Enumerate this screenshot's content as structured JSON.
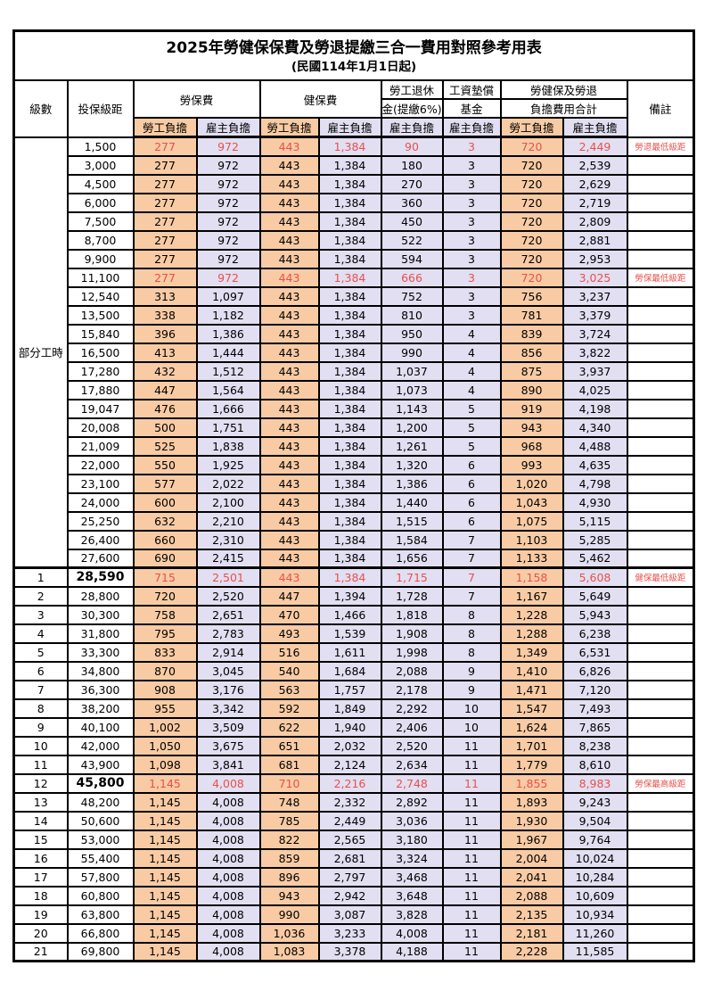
{
  "title": "2025年勞健保保費及勞退提繳三合一費用對照參考用表",
  "subtitle": "(民國114年1月1日起)",
  "header": {
    "level": "級數",
    "salary_bracket": "投保級距",
    "labor_insurance": "勞保費",
    "health_insurance": "健保費",
    "pension_line1": "勞工退休",
    "pension_line2": "金(提繳6%)",
    "wage_fund_line1": "工資墊償",
    "wage_fund_line2": "基金",
    "total_line1": "勞健保及勞退",
    "total_line2": "負擔費用合計",
    "remarks": "備註",
    "employee_share": "勞工負擔",
    "employer_share": "雇主負擔"
  },
  "part_time_label": "部分工時",
  "part_time_row_span": 23,
  "colors": {
    "employee_bg": "#F8CBA4",
    "employer_bg": "#E1DFF1",
    "highlight_text": "#E9504E",
    "border": "#000000"
  },
  "rows": [
    {
      "level": "",
      "salary": "1,500",
      "values": [
        "277",
        "972",
        "443",
        "1,384",
        "90",
        "3",
        "720",
        "2,449"
      ],
      "note": "勞退最低級距",
      "highlight": true,
      "salary_bold": false
    },
    {
      "level": "",
      "salary": "3,000",
      "values": [
        "277",
        "972",
        "443",
        "1,384",
        "180",
        "3",
        "720",
        "2,539"
      ],
      "note": "",
      "highlight": false,
      "salary_bold": false
    },
    {
      "level": "",
      "salary": "4,500",
      "values": [
        "277",
        "972",
        "443",
        "1,384",
        "270",
        "3",
        "720",
        "2,629"
      ],
      "note": "",
      "highlight": false,
      "salary_bold": false
    },
    {
      "level": "",
      "salary": "6,000",
      "values": [
        "277",
        "972",
        "443",
        "1,384",
        "360",
        "3",
        "720",
        "2,719"
      ],
      "note": "",
      "highlight": false,
      "salary_bold": false
    },
    {
      "level": "",
      "salary": "7,500",
      "values": [
        "277",
        "972",
        "443",
        "1,384",
        "450",
        "3",
        "720",
        "2,809"
      ],
      "note": "",
      "highlight": false,
      "salary_bold": false
    },
    {
      "level": "",
      "salary": "8,700",
      "values": [
        "277",
        "972",
        "443",
        "1,384",
        "522",
        "3",
        "720",
        "2,881"
      ],
      "note": "",
      "highlight": false,
      "salary_bold": false
    },
    {
      "level": "",
      "salary": "9,900",
      "values": [
        "277",
        "972",
        "443",
        "1,384",
        "594",
        "3",
        "720",
        "2,953"
      ],
      "note": "",
      "highlight": false,
      "salary_bold": false
    },
    {
      "level": "",
      "salary": "11,100",
      "values": [
        "277",
        "972",
        "443",
        "1,384",
        "666",
        "3",
        "720",
        "3,025"
      ],
      "note": "勞保最低級距",
      "highlight": true,
      "salary_bold": false
    },
    {
      "level": "",
      "salary": "12,540",
      "values": [
        "313",
        "1,097",
        "443",
        "1,384",
        "752",
        "3",
        "756",
        "3,237"
      ],
      "note": "",
      "highlight": false,
      "salary_bold": false
    },
    {
      "level": "",
      "salary": "13,500",
      "values": [
        "338",
        "1,182",
        "443",
        "1,384",
        "810",
        "3",
        "781",
        "3,379"
      ],
      "note": "",
      "highlight": false,
      "salary_bold": false
    },
    {
      "level": "",
      "salary": "15,840",
      "values": [
        "396",
        "1,386",
        "443",
        "1,384",
        "950",
        "4",
        "839",
        "3,724"
      ],
      "note": "",
      "highlight": false,
      "salary_bold": false
    },
    {
      "level": "",
      "salary": "16,500",
      "values": [
        "413",
        "1,444",
        "443",
        "1,384",
        "990",
        "4",
        "856",
        "3,822"
      ],
      "note": "",
      "highlight": false,
      "salary_bold": false
    },
    {
      "level": "",
      "salary": "17,280",
      "values": [
        "432",
        "1,512",
        "443",
        "1,384",
        "1,037",
        "4",
        "875",
        "3,937"
      ],
      "note": "",
      "highlight": false,
      "salary_bold": false
    },
    {
      "level": "",
      "salary": "17,880",
      "values": [
        "447",
        "1,564",
        "443",
        "1,384",
        "1,073",
        "4",
        "890",
        "4,025"
      ],
      "note": "",
      "highlight": false,
      "salary_bold": false
    },
    {
      "level": "",
      "salary": "19,047",
      "values": [
        "476",
        "1,666",
        "443",
        "1,384",
        "1,143",
        "5",
        "919",
        "4,198"
      ],
      "note": "",
      "highlight": false,
      "salary_bold": false
    },
    {
      "level": "",
      "salary": "20,008",
      "values": [
        "500",
        "1,751",
        "443",
        "1,384",
        "1,200",
        "5",
        "943",
        "4,340"
      ],
      "note": "",
      "highlight": false,
      "salary_bold": false
    },
    {
      "level": "",
      "salary": "21,009",
      "values": [
        "525",
        "1,838",
        "443",
        "1,384",
        "1,261",
        "5",
        "968",
        "4,488"
      ],
      "note": "",
      "highlight": false,
      "salary_bold": false
    },
    {
      "level": "",
      "salary": "22,000",
      "values": [
        "550",
        "1,925",
        "443",
        "1,384",
        "1,320",
        "6",
        "993",
        "4,635"
      ],
      "note": "",
      "highlight": false,
      "salary_bold": false
    },
    {
      "level": "",
      "salary": "23,100",
      "values": [
        "577",
        "2,022",
        "443",
        "1,384",
        "1,386",
        "6",
        "1,020",
        "4,798"
      ],
      "note": "",
      "highlight": false,
      "salary_bold": false
    },
    {
      "level": "",
      "salary": "24,000",
      "values": [
        "600",
        "2,100",
        "443",
        "1,384",
        "1,440",
        "6",
        "1,043",
        "4,930"
      ],
      "note": "",
      "highlight": false,
      "salary_bold": false
    },
    {
      "level": "",
      "salary": "25,250",
      "values": [
        "632",
        "2,210",
        "443",
        "1,384",
        "1,515",
        "6",
        "1,075",
        "5,115"
      ],
      "note": "",
      "highlight": false,
      "salary_bold": false
    },
    {
      "level": "",
      "salary": "26,400",
      "values": [
        "660",
        "2,310",
        "443",
        "1,384",
        "1,584",
        "7",
        "1,103",
        "5,285"
      ],
      "note": "",
      "highlight": false,
      "salary_bold": false
    },
    {
      "level": "",
      "salary": "27,600",
      "values": [
        "690",
        "2,415",
        "443",
        "1,384",
        "1,656",
        "7",
        "1,133",
        "5,462"
      ],
      "note": "",
      "highlight": false,
      "salary_bold": false
    },
    {
      "level": "1",
      "salary": "28,590",
      "values": [
        "715",
        "2,501",
        "443",
        "1,384",
        "1,715",
        "7",
        "1,158",
        "5,608"
      ],
      "note": "健保最低級距",
      "highlight": true,
      "salary_bold": true
    },
    {
      "level": "2",
      "salary": "28,800",
      "values": [
        "720",
        "2,520",
        "447",
        "1,394",
        "1,728",
        "7",
        "1,167",
        "5,649"
      ],
      "note": "",
      "highlight": false,
      "salary_bold": false
    },
    {
      "level": "3",
      "salary": "30,300",
      "values": [
        "758",
        "2,651",
        "470",
        "1,466",
        "1,818",
        "8",
        "1,228",
        "5,943"
      ],
      "note": "",
      "highlight": false,
      "salary_bold": false
    },
    {
      "level": "4",
      "salary": "31,800",
      "values": [
        "795",
        "2,783",
        "493",
        "1,539",
        "1,908",
        "8",
        "1,288",
        "6,238"
      ],
      "note": "",
      "highlight": false,
      "salary_bold": false
    },
    {
      "level": "5",
      "salary": "33,300",
      "values": [
        "833",
        "2,914",
        "516",
        "1,611",
        "1,998",
        "8",
        "1,349",
        "6,531"
      ],
      "note": "",
      "highlight": false,
      "salary_bold": false
    },
    {
      "level": "6",
      "salary": "34,800",
      "values": [
        "870",
        "3,045",
        "540",
        "1,684",
        "2,088",
        "9",
        "1,410",
        "6,826"
      ],
      "note": "",
      "highlight": false,
      "salary_bold": false
    },
    {
      "level": "7",
      "salary": "36,300",
      "values": [
        "908",
        "3,176",
        "563",
        "1,757",
        "2,178",
        "9",
        "1,471",
        "7,120"
      ],
      "note": "",
      "highlight": false,
      "salary_bold": false
    },
    {
      "level": "8",
      "salary": "38,200",
      "values": [
        "955",
        "3,342",
        "592",
        "1,849",
        "2,292",
        "10",
        "1,547",
        "7,493"
      ],
      "note": "",
      "highlight": false,
      "salary_bold": false
    },
    {
      "level": "9",
      "salary": "40,100",
      "values": [
        "1,002",
        "3,509",
        "622",
        "1,940",
        "2,406",
        "10",
        "1,624",
        "7,865"
      ],
      "note": "",
      "highlight": false,
      "salary_bold": false
    },
    {
      "level": "10",
      "salary": "42,000",
      "values": [
        "1,050",
        "3,675",
        "651",
        "2,032",
        "2,520",
        "11",
        "1,701",
        "8,238"
      ],
      "note": "",
      "highlight": false,
      "salary_bold": false
    },
    {
      "level": "11",
      "salary": "43,900",
      "values": [
        "1,098",
        "3,841",
        "681",
        "2,124",
        "2,634",
        "11",
        "1,779",
        "8,610"
      ],
      "note": "",
      "highlight": false,
      "salary_bold": false
    },
    {
      "level": "12",
      "salary": "45,800",
      "values": [
        "1,145",
        "4,008",
        "710",
        "2,216",
        "2,748",
        "11",
        "1,855",
        "8,983"
      ],
      "note": "勞保最高級距",
      "highlight": true,
      "salary_bold": true
    },
    {
      "level": "13",
      "salary": "48,200",
      "values": [
        "1,145",
        "4,008",
        "748",
        "2,332",
        "2,892",
        "11",
        "1,893",
        "9,243"
      ],
      "note": "",
      "highlight": false,
      "salary_bold": false
    },
    {
      "level": "14",
      "salary": "50,600",
      "values": [
        "1,145",
        "4,008",
        "785",
        "2,449",
        "3,036",
        "11",
        "1,930",
        "9,504"
      ],
      "note": "",
      "highlight": false,
      "salary_bold": false
    },
    {
      "level": "15",
      "salary": "53,000",
      "values": [
        "1,145",
        "4,008",
        "822",
        "2,565",
        "3,180",
        "11",
        "1,967",
        "9,764"
      ],
      "note": "",
      "highlight": false,
      "salary_bold": false
    },
    {
      "level": "16",
      "salary": "55,400",
      "values": [
        "1,145",
        "4,008",
        "859",
        "2,681",
        "3,324",
        "11",
        "2,004",
        "10,024"
      ],
      "note": "",
      "highlight": false,
      "salary_bold": false
    },
    {
      "level": "17",
      "salary": "57,800",
      "values": [
        "1,145",
        "4,008",
        "896",
        "2,797",
        "3,468",
        "11",
        "2,041",
        "10,284"
      ],
      "note": "",
      "highlight": false,
      "salary_bold": false
    },
    {
      "level": "18",
      "salary": "60,800",
      "values": [
        "1,145",
        "4,008",
        "943",
        "2,942",
        "3,648",
        "11",
        "2,088",
        "10,609"
      ],
      "note": "",
      "highlight": false,
      "salary_bold": false
    },
    {
      "level": "19",
      "salary": "63,800",
      "values": [
        "1,145",
        "4,008",
        "990",
        "3,087",
        "3,828",
        "11",
        "2,135",
        "10,934"
      ],
      "note": "",
      "highlight": false,
      "salary_bold": false
    },
    {
      "level": "20",
      "salary": "66,800",
      "values": [
        "1,145",
        "4,008",
        "1,036",
        "3,233",
        "4,008",
        "11",
        "2,181",
        "11,260"
      ],
      "note": "",
      "highlight": false,
      "salary_bold": false
    },
    {
      "level": "21",
      "salary": "69,800",
      "values": [
        "1,145",
        "4,008",
        "1,083",
        "3,378",
        "4,188",
        "11",
        "2,228",
        "11,585"
      ],
      "note": "",
      "highlight": false,
      "salary_bold": false
    }
  ]
}
